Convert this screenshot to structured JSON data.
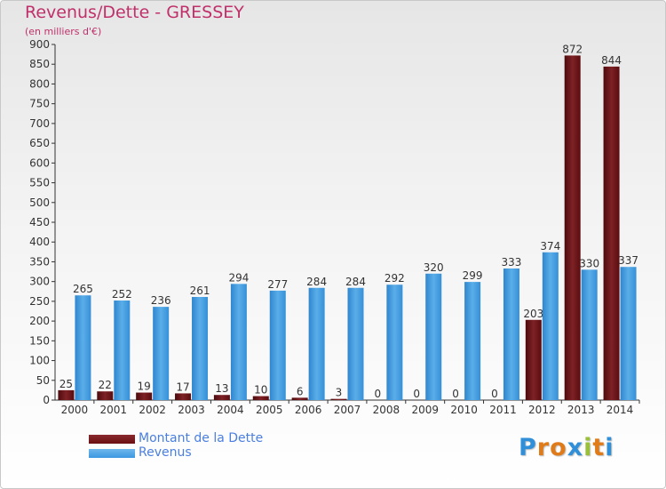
{
  "title": "Revenus/Dette - GRESSEY",
  "subtitle": "(en milliers d'€)",
  "colors": {
    "dette": "#6b0e12",
    "revenus": "#3d98e0",
    "title": "#c0306a",
    "legend_text": "#4a7fe0"
  },
  "legend": [
    {
      "label": "Montant de la Dette",
      "color": "#6b0e12"
    },
    {
      "label": "Revenus",
      "color": "#3d98e0"
    }
  ],
  "logo": {
    "letters": [
      "P",
      "r",
      "o",
      "x",
      "i",
      "t",
      "i"
    ],
    "colors": [
      "#2f8fd8",
      "#e07b1a",
      "#e07b1a",
      "#2f8fd8",
      "#9ac03a",
      "#e07b1a",
      "#2f8fd8"
    ]
  },
  "chart_data": {
    "type": "bar",
    "categories": [
      "2000",
      "2001",
      "2002",
      "2003",
      "2004",
      "2005",
      "2006",
      "2007",
      "2008",
      "2009",
      "2010",
      "2011",
      "2012",
      "2013",
      "2014"
    ],
    "series": [
      {
        "name": "Montant de la Dette",
        "values": [
          25,
          22,
          19,
          17,
          13,
          10,
          6,
          3,
          0,
          0,
          0,
          0,
          203,
          872,
          844
        ]
      },
      {
        "name": "Revenus",
        "values": [
          265,
          252,
          236,
          261,
          294,
          277,
          284,
          284,
          292,
          320,
          299,
          333,
          374,
          330,
          337
        ]
      }
    ],
    "yticks": [
      "0",
      "50",
      "100",
      "150",
      "200",
      "250",
      "300",
      "350",
      "400",
      "450",
      "500",
      "550",
      "600",
      "650",
      "700",
      "750",
      "800",
      "850",
      "900"
    ],
    "ylim": [
      0,
      900
    ],
    "grid": false,
    "legend_position": "bottom-left"
  }
}
